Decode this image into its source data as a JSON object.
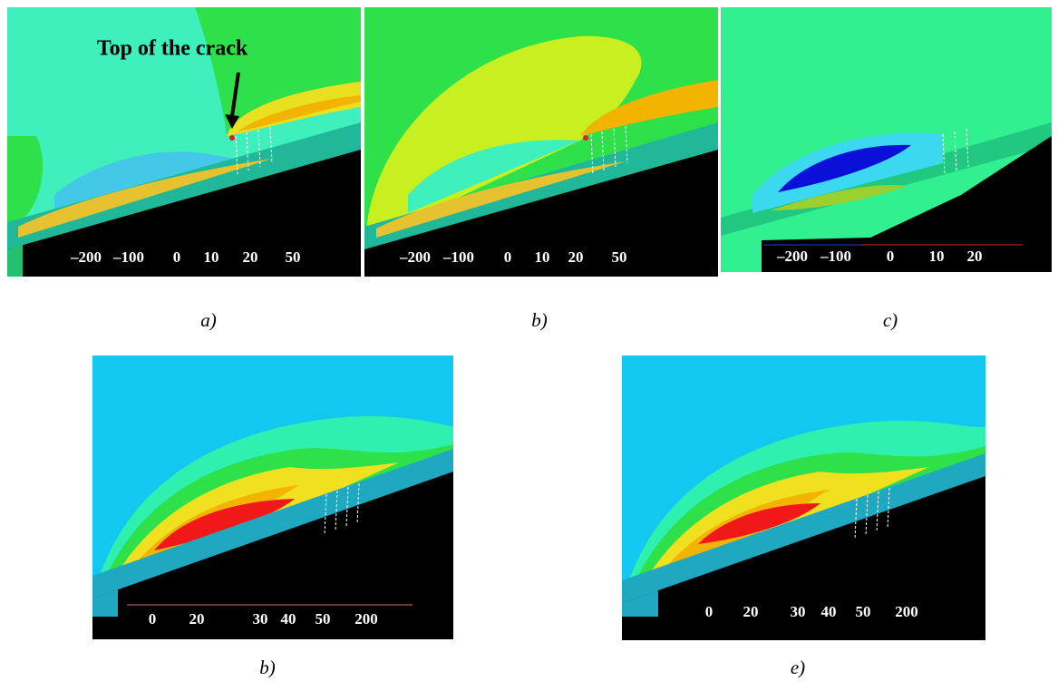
{
  "annotation": "Top of the crack",
  "panels": [
    {
      "caption": "a)",
      "colorbar_labels": [
        "–200",
        "–100",
        "0",
        "10",
        "20",
        "50"
      ]
    },
    {
      "caption": "b)",
      "colorbar_labels": [
        "–200",
        "–100",
        "0",
        "10",
        "20",
        "50"
      ]
    },
    {
      "caption": "c)",
      "colorbar_labels": [
        "–200",
        "–100",
        "0",
        "10",
        "20"
      ]
    },
    {
      "caption": "b)",
      "colorbar_labels": [
        "0",
        "20",
        "30",
        "40",
        "50",
        "200"
      ]
    },
    {
      "caption": "e)",
      "colorbar_labels": [
        "0",
        "20",
        "30",
        "40",
        "50",
        "200"
      ]
    }
  ]
}
